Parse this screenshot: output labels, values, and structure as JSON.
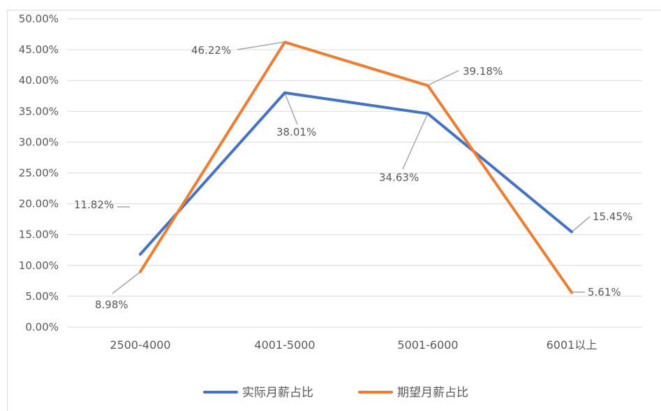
{
  "chart_data": {
    "type": "line",
    "categories": [
      "2500-4000",
      "4001-5000",
      "5001-6000",
      "6001以上"
    ],
    "series": [
      {
        "name": "实际月薪占比",
        "values": [
          11.82,
          38.01,
          34.63,
          15.45
        ],
        "labels": [
          "11.82%",
          "38.01%",
          "34.63%",
          "15.45%"
        ],
        "color": "#4472c4"
      },
      {
        "name": "期望月薪占比",
        "values": [
          8.98,
          46.22,
          39.18,
          5.61
        ],
        "labels": [
          "8.98%",
          "46.22%",
          "39.18%",
          "5.61%"
        ],
        "color": "#ed7d31"
      }
    ],
    "y_ticks": [
      "0.00%",
      "5.00%",
      "10.00%",
      "15.00%",
      "20.00%",
      "25.00%",
      "30.00%",
      "35.00%",
      "40.00%",
      "45.00%",
      "50.00%"
    ],
    "ylim": [
      0,
      50
    ],
    "grid": true,
    "legend_position": "bottom"
  },
  "colors": {
    "gridline": "#d9d9d9",
    "leader": "#a6a6a6",
    "text": "#595959"
  }
}
